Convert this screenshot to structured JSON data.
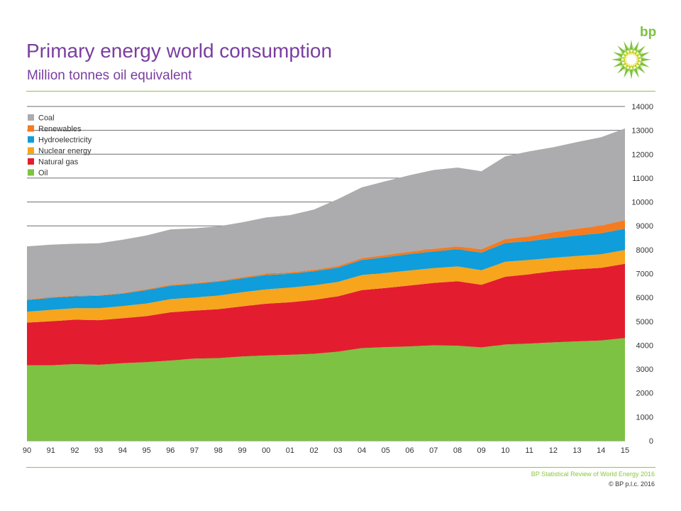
{
  "header": {
    "title": "Primary energy world consumption",
    "subtitle": "Million tonnes oil equivalent",
    "logo_text": "bp"
  },
  "footer": {
    "source": "BP Statistical Review of World Energy 2016",
    "copyright": "© BP p.l.c. 2016"
  },
  "colors": {
    "title": "#7a3ea0",
    "rule": "#8cc63f",
    "Oil": "#7dc242",
    "Natural gas": "#e31d2f",
    "Nuclear energy": "#f7a51c",
    "Hydroelectricity": "#0f9ddb",
    "Renewables": "#f47b20",
    "Coal": "#acabae"
  },
  "chart_data": {
    "type": "area",
    "stacked": true,
    "x": [
      "90",
      "91",
      "92",
      "93",
      "94",
      "95",
      "96",
      "97",
      "98",
      "99",
      "00",
      "01",
      "02",
      "03",
      "04",
      "05",
      "06",
      "07",
      "08",
      "09",
      "10",
      "11",
      "12",
      "13",
      "14",
      "15"
    ],
    "ylim": [
      0,
      14000
    ],
    "yticks": [
      "0",
      "1000",
      "2000",
      "3000",
      "4000",
      "5000",
      "6000",
      "7000",
      "8000",
      "9000",
      "10000",
      "11000",
      "12000",
      "13000",
      "14000"
    ],
    "legend_position": "top-left",
    "series": [
      {
        "name": "Oil",
        "values": [
          3160,
          3160,
          3210,
          3180,
          3250,
          3290,
          3360,
          3440,
          3460,
          3530,
          3570,
          3600,
          3640,
          3730,
          3880,
          3920,
          3950,
          4000,
          3980,
          3910,
          4030,
          4070,
          4120,
          4160,
          4200,
          4300
        ]
      },
      {
        "name": "Natural gas",
        "values": [
          1790,
          1840,
          1860,
          1870,
          1880,
          1930,
          2020,
          2010,
          2050,
          2100,
          2170,
          2200,
          2260,
          2320,
          2430,
          2480,
          2550,
          2610,
          2700,
          2620,
          2840,
          2900,
          2980,
          3020,
          3040,
          3110
        ]
      },
      {
        "name": "Nuclear energy",
        "values": [
          450,
          480,
          480,
          500,
          510,
          530,
          550,
          550,
          570,
          590,
          600,
          610,
          610,
          600,
          630,
          630,
          630,
          620,
          620,
          610,
          630,
          600,
          560,
          560,
          570,
          580
        ]
      },
      {
        "name": "Hydroelectricity",
        "values": [
          490,
          500,
          500,
          520,
          520,
          560,
          560,
          570,
          580,
          580,
          600,
          580,
          590,
          600,
          630,
          660,
          690,
          700,
          720,
          740,
          780,
          790,
          830,
          860,
          880,
          890
        ]
      },
      {
        "name": "Renewables",
        "values": [
          30,
          30,
          30,
          30,
          30,
          40,
          40,
          40,
          40,
          50,
          50,
          60,
          60,
          70,
          80,
          90,
          100,
          110,
          120,
          140,
          170,
          200,
          240,
          280,
          320,
          360
        ]
      },
      {
        "name": "Coal",
        "values": [
          2220,
          2200,
          2170,
          2170,
          2230,
          2250,
          2320,
          2290,
          2280,
          2300,
          2360,
          2400,
          2520,
          2800,
          2960,
          3090,
          3200,
          3300,
          3300,
          3270,
          3460,
          3560,
          3560,
          3630,
          3700,
          3840
        ]
      }
    ]
  }
}
